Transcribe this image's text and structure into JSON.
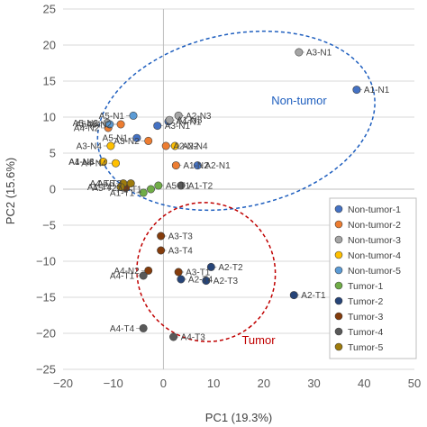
{
  "chart_data": {
    "type": "scatter",
    "xlabel": "PC1 (19.3%)",
    "ylabel": "PC2 (15.6%)",
    "xlim": [
      -20,
      50
    ],
    "ylim": [
      -25,
      25
    ],
    "xticks": [
      "−20",
      "−10",
      "0",
      "10",
      "20",
      "30",
      "40",
      "50"
    ],
    "yticks": [
      "25",
      "20",
      "15",
      "10",
      "5",
      "0",
      "−5",
      "−10",
      "−15",
      "−20",
      "−25"
    ],
    "grid": "horizontal",
    "legend_position": "right",
    "series": [
      {
        "name": "Non-tumor-1",
        "color": "#4472c4",
        "points": [
          {
            "label": "A1-N1",
            "x": 38.5,
            "y": 13.8
          },
          {
            "label": "A2-N1",
            "x": 6.8,
            "y": 3.3
          },
          {
            "label": "A3-N1",
            "x": -1.2,
            "y": 8.8
          },
          {
            "label": "A4-N1",
            "x": 1.0,
            "y": 9.4
          },
          {
            "label": "A5-N1",
            "x": -5.3,
            "y": 7.1
          }
        ]
      },
      {
        "name": "Non-tumor-2",
        "color": "#ed7d31",
        "points": [
          {
            "label": "A1-N2",
            "x": 2.5,
            "y": 3.3
          },
          {
            "label": "A2-N2",
            "x": 0.5,
            "y": 6.0
          },
          {
            "label": "A3-N2",
            "x": -3.0,
            "y": 6.7
          },
          {
            "label": "A4-N2",
            "x": -11.0,
            "y": 8.5
          },
          {
            "label": "A5-N2",
            "x": -8.5,
            "y": 9.0
          }
        ]
      },
      {
        "name": "Non-tumor-3",
        "color": "#a5a5a5",
        "points": [
          {
            "label": "A1-N3",
            "x": 1.2,
            "y": 9.6
          },
          {
            "label": "A2-N3",
            "x": 3.0,
            "y": 10.2
          },
          {
            "label": "A3-N1",
            "x": 27.0,
            "y": 19.0
          },
          {
            "label": "A4-N3",
            "x": -12.0,
            "y": 3.8
          },
          {
            "label": "A5-N3",
            "x": -11.2,
            "y": 9.2
          }
        ]
      },
      {
        "name": "Non-tumor-4",
        "color": "#ffc000",
        "points": [
          {
            "label": "A2-N4",
            "x": 2.3,
            "y": 6.0
          },
          {
            "label": "A3-N4",
            "x": -10.5,
            "y": 6.0
          },
          {
            "label": "A1-N4",
            "x": -12.0,
            "y": 3.8
          },
          {
            "label": "A4-N4",
            "x": -9.5,
            "y": 3.6
          }
        ]
      },
      {
        "name": "Non-tumor-5",
        "color": "#5b9bd5",
        "points": [
          {
            "label": "A5-N4",
            "x": -10.7,
            "y": 9.0
          },
          {
            "label": "A5-N1",
            "x": -6.0,
            "y": 10.2
          }
        ]
      },
      {
        "name": "Tumor-1",
        "color": "#70ad47",
        "points": [
          {
            "label": "A1-T1",
            "x": -4.0,
            "y": -0.5
          },
          {
            "label": "A2-T1",
            "x": -2.5,
            "y": 0.0
          },
          {
            "label": "A5-T1",
            "x": -1.0,
            "y": 0.5
          }
        ]
      },
      {
        "name": "Tumor-2",
        "color": "#264478",
        "points": [
          {
            "label": "A2-T2",
            "x": 9.5,
            "y": -10.8
          },
          {
            "label": "A2-T3",
            "x": 8.5,
            "y": -12.7
          },
          {
            "label": "A2-T1",
            "x": 26.0,
            "y": -14.7
          },
          {
            "label": "A2-T4",
            "x": 3.5,
            "y": -12.5
          }
        ]
      },
      {
        "name": "Tumor-3",
        "color": "#843c0c",
        "points": [
          {
            "label": "A3-T3",
            "x": -0.5,
            "y": -6.5
          },
          {
            "label": "A3-T4",
            "x": -0.5,
            "y": -8.5
          },
          {
            "label": "A3-T1",
            "x": 3.0,
            "y": -11.5
          },
          {
            "label": "A5-T2",
            "x": -7.5,
            "y": 0.2
          },
          {
            "label": "A4-N2",
            "x": -3.0,
            "y": -11.3
          }
        ]
      },
      {
        "name": "Tumor-4",
        "color": "#595959",
        "points": [
          {
            "label": "A4-T1",
            "x": -4.0,
            "y": -12.0
          },
          {
            "label": "A4-T4",
            "x": -4.0,
            "y": -19.3
          },
          {
            "label": "A4-T3",
            "x": 2.0,
            "y": -20.5
          },
          {
            "label": "A1-T2",
            "x": 3.5,
            "y": 0.5
          }
        ]
      },
      {
        "name": "Tumor-5",
        "color": "#9e7b0c",
        "points": [
          {
            "label": "A4-T5",
            "x": -8.0,
            "y": 0.8
          },
          {
            "label": "A1-T4",
            "x": -8.5,
            "y": 0.3
          },
          {
            "label": "A5-T3",
            "x": -6.5,
            "y": 0.8
          }
        ]
      }
    ],
    "annotations": [
      {
        "text": "Non-tumor",
        "color": "#1f5fbf"
      },
      {
        "text": "Tumor",
        "color": "#c00000"
      }
    ]
  }
}
